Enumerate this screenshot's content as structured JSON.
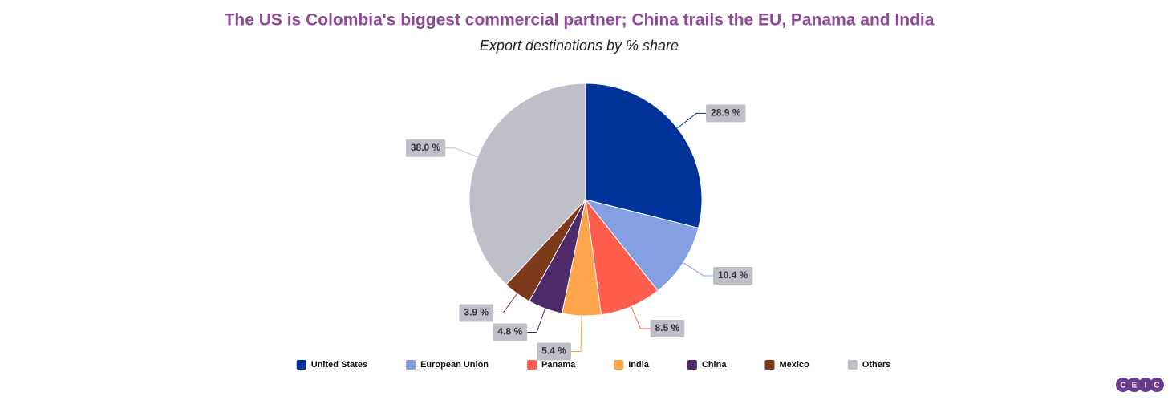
{
  "chart_data": {
    "type": "pie",
    "title": "The US is Colombia's biggest commercial partner; China trails the EU, Panama and India",
    "subtitle": "Export destinations by % share",
    "categories": [
      "United States",
      "European Union",
      "Panama",
      "India",
      "China",
      "Mexico",
      "Others"
    ],
    "values": [
      28.9,
      10.4,
      8.5,
      5.4,
      4.8,
      3.9,
      38.0
    ],
    "value_labels": [
      "28.9 %",
      "10.4 %",
      "8.5 %",
      "5.4 %",
      "4.8 %",
      "3.9 %",
      "38.0 %"
    ],
    "colors": [
      "#003399",
      "#84a0e3",
      "#ff5e4e",
      "#ffa64d",
      "#4f2a6b",
      "#7e3a1c",
      "#bfbfca"
    ],
    "legend": "bottom"
  },
  "logo": [
    "C",
    "E",
    "I",
    "C"
  ]
}
